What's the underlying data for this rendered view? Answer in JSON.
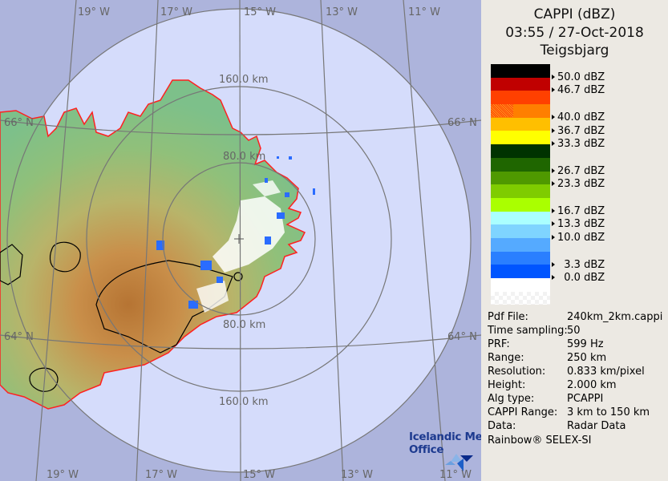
{
  "header": {
    "product": "CAPPI (dBZ)",
    "datetime": "03:55 / 27-Oct-2018",
    "site": "Teigsbjarg"
  },
  "legend": {
    "bands": [
      "#000000",
      "#c00000",
      "#ff4000",
      "#ff7f00",
      "#ffbf00",
      "#ffff00",
      "#003300",
      "#1f6600",
      "#4f9900",
      "#7fcc00",
      "#aaff00",
      "#aaffff",
      "#7fd4ff",
      "#55aaff",
      "#2a7fff",
      "#0055ff",
      "#ffffff",
      "checker"
    ],
    "ticks": [
      {
        "label": "50.0 dBZ",
        "boundary": 1
      },
      {
        "label": "46.7 dBZ",
        "boundary": 2
      },
      {
        "label": "40.0 dBZ",
        "boundary": 4
      },
      {
        "label": "36.7 dBZ",
        "boundary": 5
      },
      {
        "label": "33.3 dBZ",
        "boundary": 6
      },
      {
        "label": "26.7 dBZ",
        "boundary": 8
      },
      {
        "label": "23.3 dBZ",
        "boundary": 9
      },
      {
        "label": "16.7 dBZ",
        "boundary": 11
      },
      {
        "label": "13.3 dBZ",
        "boundary": 12
      },
      {
        "label": "10.0 dBZ",
        "boundary": 13
      },
      {
        "label": "  3.3 dBZ",
        "boundary": 15
      },
      {
        "label": "  0.0 dBZ",
        "boundary": 16
      }
    ]
  },
  "info": [
    {
      "key": "Pdf File:",
      "value": "240km_2km.cappi"
    },
    {
      "key": "Time sampling:",
      "value": "50"
    },
    {
      "key": "PRF:",
      "value": "599 Hz"
    },
    {
      "key": "Range:",
      "value": "250 km"
    },
    {
      "key": "Resolution:",
      "value": "0.833 km/pixel"
    },
    {
      "key": "Height:",
      "value": "2.000 km"
    },
    {
      "key": "Alg type:",
      "value": "PCAPPI"
    },
    {
      "key": "CAPPI Range:",
      "value": "3 km to 150 km"
    },
    {
      "key": "Data:",
      "value": "Radar Data"
    }
  ],
  "footer": "Rainbow® SELEX-SI",
  "map": {
    "longitudes": [
      "19° W",
      "17° W",
      "15° W",
      "13° W",
      "11° W"
    ],
    "latitudes": [
      "66° N",
      "64° N"
    ],
    "rings": [
      "80.0 km",
      "160.0 km"
    ],
    "colors": {
      "outside": "#adb4dc",
      "coverage": "#d5dcfb",
      "coast": "#ff2020",
      "grid": "#777777"
    }
  },
  "logo": {
    "line1": "Icelandic Met",
    "line2": "Office"
  }
}
